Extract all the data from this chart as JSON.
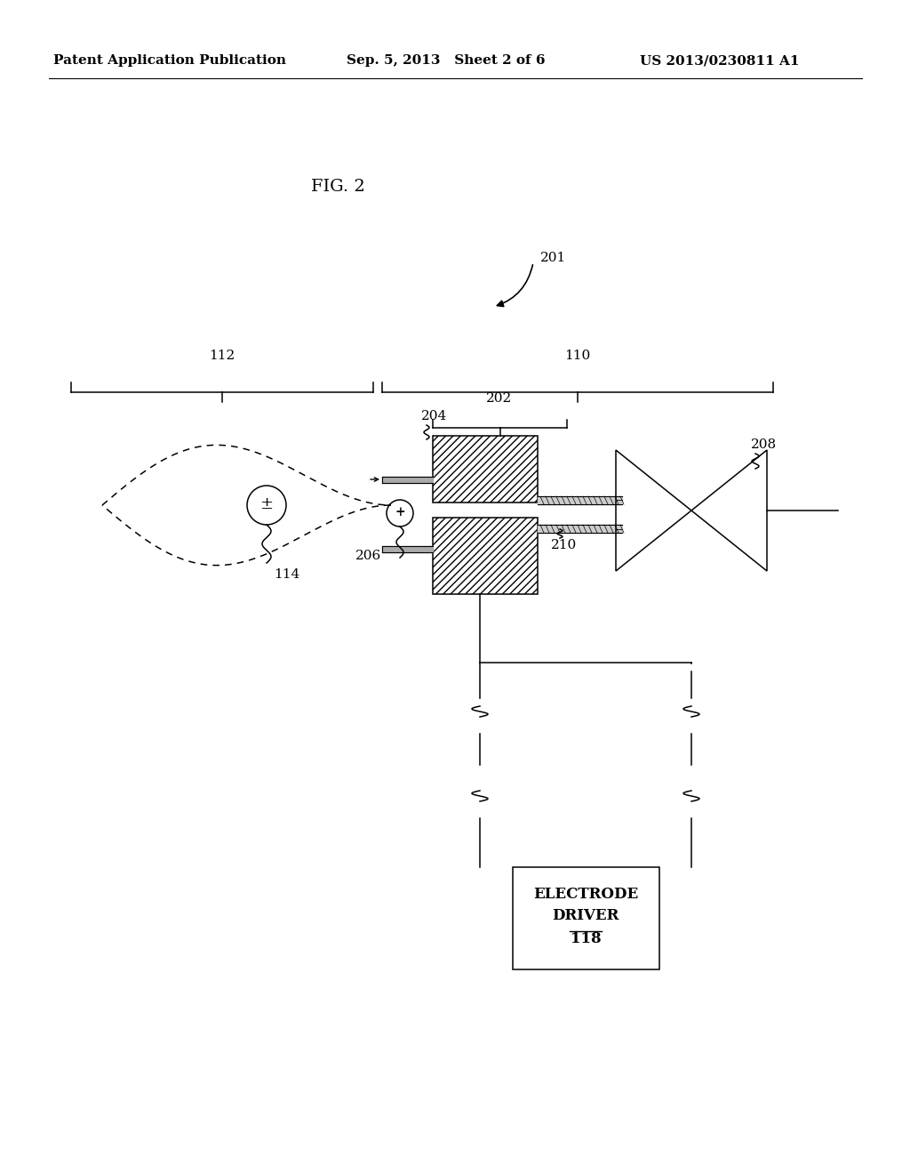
{
  "bg_color": "#ffffff",
  "header_left": "Patent Application Publication",
  "header_mid": "Sep. 5, 2013   Sheet 2 of 6",
  "header_right": "US 2013/0230811 A1",
  "fig_label": "FIG. 2",
  "ref_201": "201",
  "ref_112": "112",
  "ref_110": "110",
  "ref_202": "202",
  "ref_204": "204",
  "ref_206": "206",
  "ref_208": "208",
  "ref_210": "210",
  "ref_114": "114",
  "ref_118": "118",
  "box_label_line1": "ELECTRODE",
  "box_label_line2": "DRIVER",
  "box_label_line3": "118",
  "lw": 1.3,
  "lw_thin": 1.1,
  "fontsize_main": 11,
  "fontsize_ref": 11,
  "fontsize_fig": 14
}
